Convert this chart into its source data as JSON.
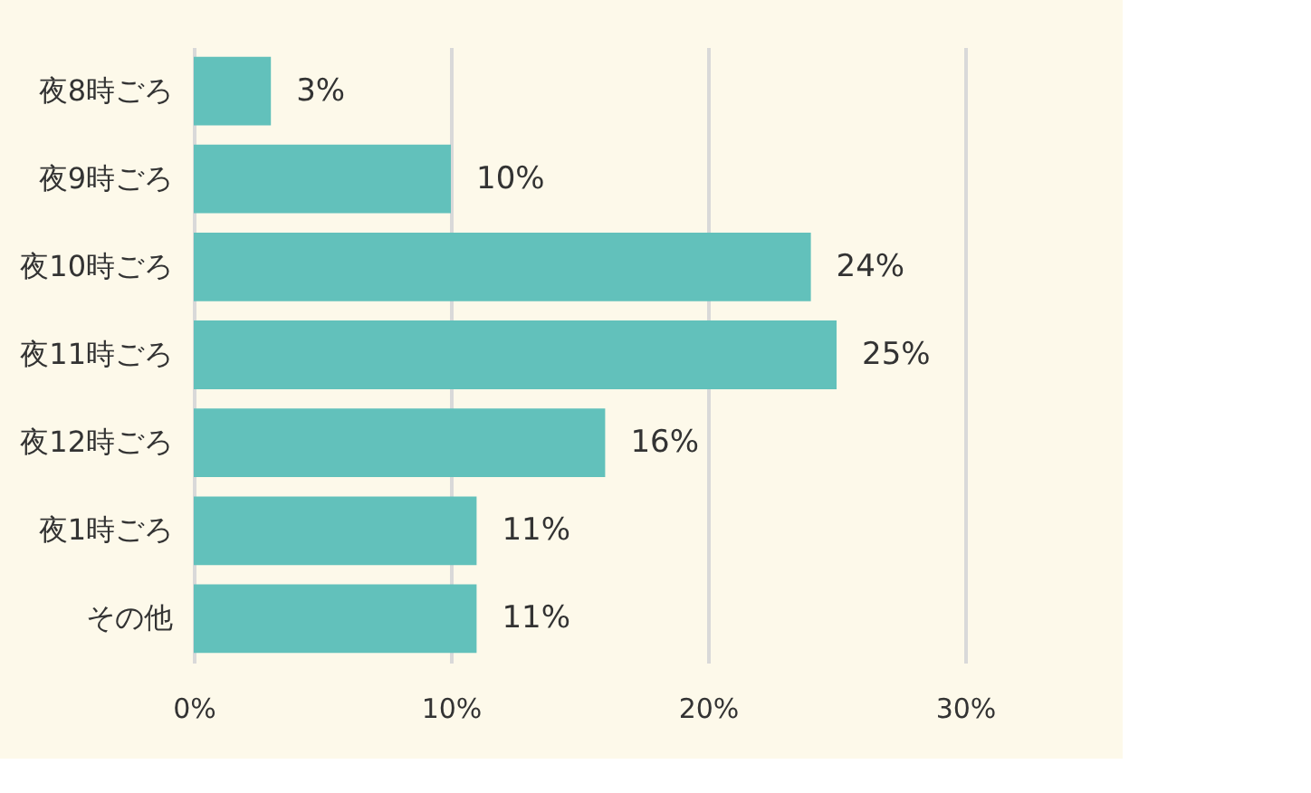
{
  "chart_data": {
    "type": "bar",
    "orientation": "horizontal",
    "categories": [
      "夜8時ごろ",
      "夜9時ごろ",
      "夜10時ごろ",
      "夜11時ごろ",
      "夜12時ごろ",
      "夜1時ごろ",
      "その他"
    ],
    "values": [
      3,
      10,
      24,
      25,
      16,
      11,
      11
    ],
    "value_labels": [
      "3%",
      "10%",
      "24%",
      "25%",
      "16%",
      "11%",
      "11%"
    ],
    "color": "#62c1bb",
    "xlim": [
      0,
      30
    ],
    "xticks": [
      {
        "value": 0,
        "label": "0%"
      },
      {
        "value": 10,
        "label": "10%"
      },
      {
        "value": 20,
        "label": "20%"
      },
      {
        "value": 30,
        "label": "30%"
      }
    ],
    "grid": "x"
  }
}
